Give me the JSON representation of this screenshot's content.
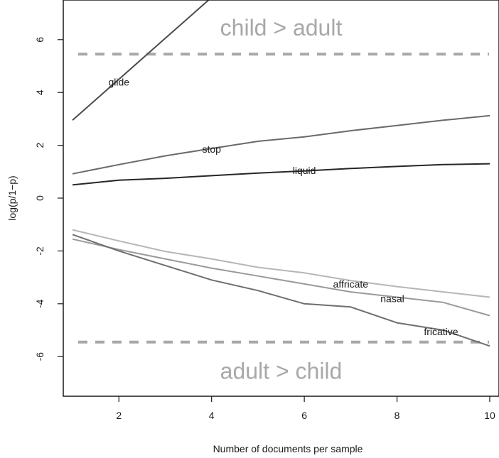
{
  "chart_data": {
    "type": "line",
    "title": "",
    "xlabel": "Number of documents per sample",
    "ylabel": "log(p/1−p)",
    "xlim": [
      0.8,
      10.2
    ],
    "ylim": [
      -7.5,
      7.5
    ],
    "xticks": [
      2,
      4,
      6,
      8,
      10
    ],
    "yticks": [
      -6,
      -4,
      -2,
      0,
      2,
      4,
      6
    ],
    "grid": false,
    "legend": "none",
    "x": [
      1,
      2,
      3,
      4,
      5,
      6,
      7,
      8,
      9,
      10
    ],
    "series": [
      {
        "name": "glide",
        "color": "#4a4a4a",
        "values": [
          2.95,
          4.5,
          6.05,
          7.6,
          null,
          null,
          null,
          null,
          null,
          null
        ],
        "label_at": [
          2.0,
          4.4
        ]
      },
      {
        "name": "stop",
        "color": "#6a6a6a",
        "values": [
          0.92,
          1.27,
          1.6,
          1.88,
          2.15,
          2.32,
          2.55,
          2.75,
          2.95,
          3.12
        ],
        "label_at": [
          4.0,
          1.85
        ]
      },
      {
        "name": "liquid",
        "color": "#262626",
        "values": [
          0.5,
          0.68,
          0.75,
          0.85,
          0.95,
          1.03,
          1.12,
          1.2,
          1.27,
          1.3
        ],
        "label_at": [
          6.0,
          1.05
        ]
      },
      {
        "name": "affricate",
        "color": "#b6b6b6",
        "values": [
          -1.2,
          -1.62,
          -2.02,
          -2.3,
          -2.62,
          -2.83,
          -3.12,
          -3.35,
          -3.55,
          -3.75
        ],
        "label_at": [
          7.0,
          -3.25
        ]
      },
      {
        "name": "nasal",
        "color": "#9a9a9a",
        "values": [
          -1.55,
          -1.95,
          -2.3,
          -2.65,
          -2.95,
          -3.25,
          -3.55,
          -3.75,
          -3.95,
          -4.45
        ],
        "label_at": [
          7.9,
          -3.8
        ]
      },
      {
        "name": "fricative",
        "color": "#6e6e6e",
        "values": [
          -1.38,
          -2.0,
          -2.55,
          -3.1,
          -3.5,
          -4.0,
          -4.12,
          -4.72,
          -5.0,
          -5.6
        ],
        "label_at": [
          8.95,
          -5.05
        ]
      }
    ],
    "reference_lines": [
      {
        "y": 5.45,
        "color": "#a8a8a8",
        "style": "dashed"
      },
      {
        "y": -5.45,
        "color": "#a8a8a8",
        "style": "dashed"
      }
    ],
    "annotations": [
      {
        "text": "child > adult",
        "x": 5.5,
        "y": 6.45
      },
      {
        "text": "adult > child",
        "x": 5.5,
        "y": -6.55
      }
    ]
  }
}
